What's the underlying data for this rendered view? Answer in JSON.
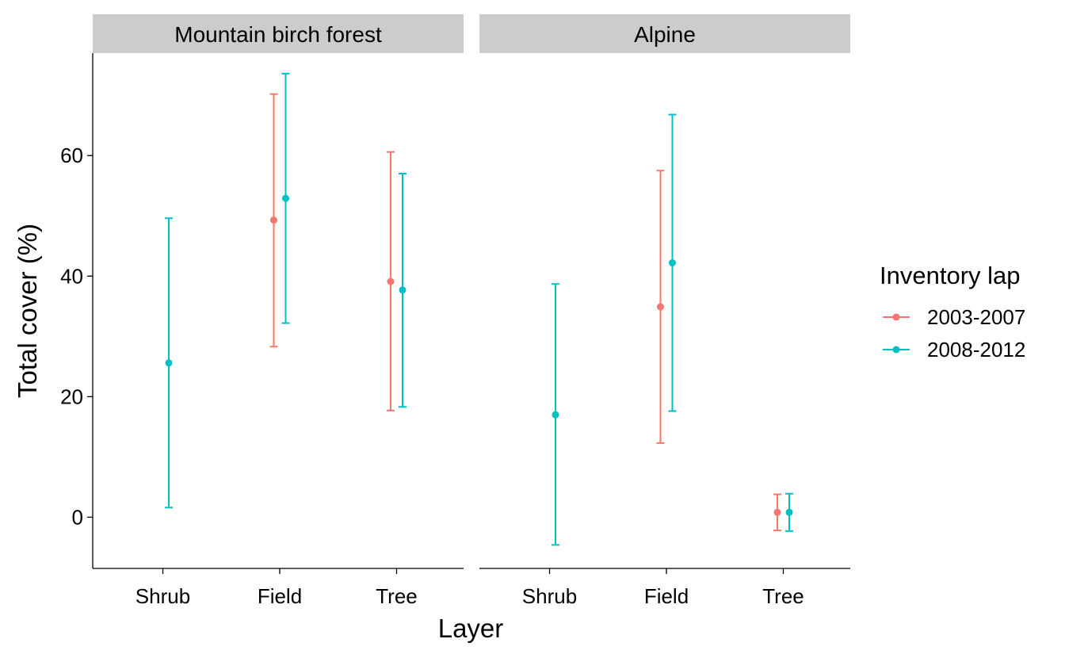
{
  "chart_data": {
    "type": "errorbar",
    "xlabel": "Layer",
    "ylabel": "Total cover (%)",
    "categories": [
      "Shrub",
      "Field",
      "Tree"
    ],
    "ylim": [
      -8.5,
      77
    ],
    "yticks": [
      0,
      20,
      40,
      60
    ],
    "grid": false,
    "legend": {
      "title": "Inventory lap",
      "position": "right",
      "entries": [
        {
          "name": "2003-2007",
          "color": "#F8766D"
        },
        {
          "name": "2008-2012",
          "color": "#00BFC4"
        }
      ]
    },
    "panels": [
      {
        "name": "Mountain birch forest",
        "series": [
          {
            "name": "2003-2007",
            "color": "#F8766D",
            "points": [
              {
                "category": "Field",
                "y": 49.3,
                "ymin": 28.3,
                "ymax": 70.2
              },
              {
                "category": "Tree",
                "y": 39.1,
                "ymin": 17.7,
                "ymax": 60.6
              }
            ]
          },
          {
            "name": "2008-2012",
            "color": "#00BFC4",
            "points": [
              {
                "category": "Shrub",
                "y": 25.6,
                "ymin": 1.6,
                "ymax": 49.6
              },
              {
                "category": "Field",
                "y": 52.9,
                "ymin": 32.2,
                "ymax": 73.6
              },
              {
                "category": "Tree",
                "y": 37.7,
                "ymin": 18.3,
                "ymax": 57.0
              }
            ]
          }
        ]
      },
      {
        "name": "Alpine",
        "series": [
          {
            "name": "2003-2007",
            "color": "#F8766D",
            "points": [
              {
                "category": "Field",
                "y": 34.9,
                "ymin": 12.3,
                "ymax": 57.5
              },
              {
                "category": "Tree",
                "y": 0.8,
                "ymin": -2.2,
                "ymax": 3.8
              }
            ]
          },
          {
            "name": "2008-2012",
            "color": "#00BFC4",
            "points": [
              {
                "category": "Shrub",
                "y": 17.0,
                "ymin": -4.6,
                "ymax": 38.7
              },
              {
                "category": "Field",
                "y": 42.2,
                "ymin": 17.6,
                "ymax": 66.8
              },
              {
                "category": "Tree",
                "y": 0.8,
                "ymin": -2.3,
                "ymax": 3.9
              }
            ]
          }
        ]
      }
    ]
  }
}
